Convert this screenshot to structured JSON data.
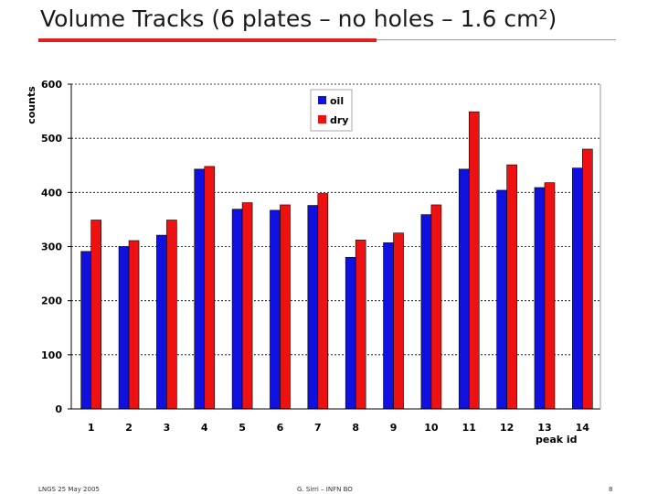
{
  "slide": {
    "title": "Volume Tracks (6 plates – no holes – 1.6 cm²)",
    "footer_left": "LNGS 25 May 2005",
    "footer_center": "G. Sirri – INFN BO",
    "footer_right": "8"
  },
  "chart_data": {
    "type": "bar",
    "title": "",
    "xlabel": "peak id",
    "ylabel": "counts",
    "ylim": [
      0,
      600
    ],
    "yticks": [
      0,
      100,
      200,
      300,
      400,
      500,
      600
    ],
    "grid": true,
    "legend_position": "top-right",
    "categories": [
      "1",
      "2",
      "3",
      "4",
      "5",
      "6",
      "7",
      "8",
      "9",
      "10",
      "11",
      "12",
      "13",
      "14"
    ],
    "series": [
      {
        "name": "oil",
        "color": "#1010e0",
        "values": [
          291,
          300,
          321,
          443,
          369,
          367,
          376,
          280,
          307,
          359,
          443,
          404,
          409,
          445
        ]
      },
      {
        "name": "dry",
        "color": "#ee1111",
        "values": [
          349,
          311,
          349,
          448,
          381,
          377,
          398,
          312,
          325,
          377,
          549,
          451,
          418,
          480
        ]
      }
    ]
  }
}
